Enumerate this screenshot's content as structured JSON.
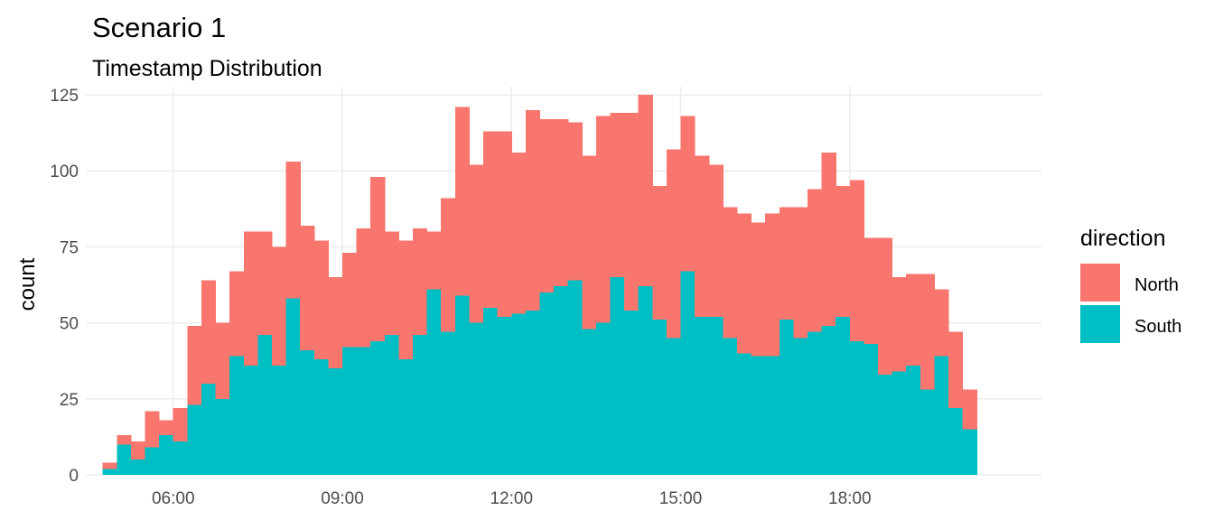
{
  "chart_data": {
    "type": "bar",
    "stacked": true,
    "title": "Scenario 1",
    "subtitle": "Timestamp Distribution",
    "xlabel": "",
    "ylabel": "count",
    "ylim": [
      0,
      125
    ],
    "y_ticks": [
      0,
      25,
      50,
      75,
      100,
      125
    ],
    "x_ticks": [
      "06:00",
      "09:00",
      "12:00",
      "15:00",
      "18:00"
    ],
    "x_tick_hours": [
      6,
      9,
      12,
      15,
      18
    ],
    "x_range_hours": [
      4.45,
      21.4
    ],
    "bin_start_hours": 4.75,
    "bin_width_hours": 0.25,
    "grid": true,
    "legend": {
      "title": "direction",
      "position": "right"
    },
    "series": [
      {
        "name": "South",
        "color": "#00BFC4",
        "values": [
          2,
          10,
          5,
          9,
          13,
          11,
          23,
          30,
          25,
          39,
          36,
          46,
          36,
          58,
          41,
          38,
          35,
          42,
          42,
          44,
          46,
          38,
          46,
          61,
          47,
          59,
          50,
          55,
          52,
          53,
          54,
          60,
          62,
          64,
          48,
          50,
          65,
          54,
          62,
          51,
          45,
          67,
          52,
          52,
          45,
          40,
          39,
          39,
          51,
          45,
          47,
          49,
          52,
          44,
          43,
          33,
          34,
          36,
          28,
          39,
          22,
          15
        ]
      },
      {
        "name": "North",
        "color": "#F8766D",
        "values": [
          2,
          3,
          6,
          12,
          5,
          11,
          26,
          34,
          25,
          28,
          44,
          34,
          39,
          45,
          41,
          39,
          30,
          31,
          39,
          54,
          34,
          39,
          35,
          19,
          44,
          62,
          52,
          58,
          61,
          53,
          66,
          57,
          55,
          52,
          57,
          68,
          54,
          65,
          63,
          44,
          62,
          51,
          53,
          50,
          43,
          46,
          44,
          47,
          37,
          43,
          47,
          57,
          43,
          53,
          35,
          45,
          31,
          30,
          38,
          22,
          25,
          13
        ]
      }
    ]
  }
}
